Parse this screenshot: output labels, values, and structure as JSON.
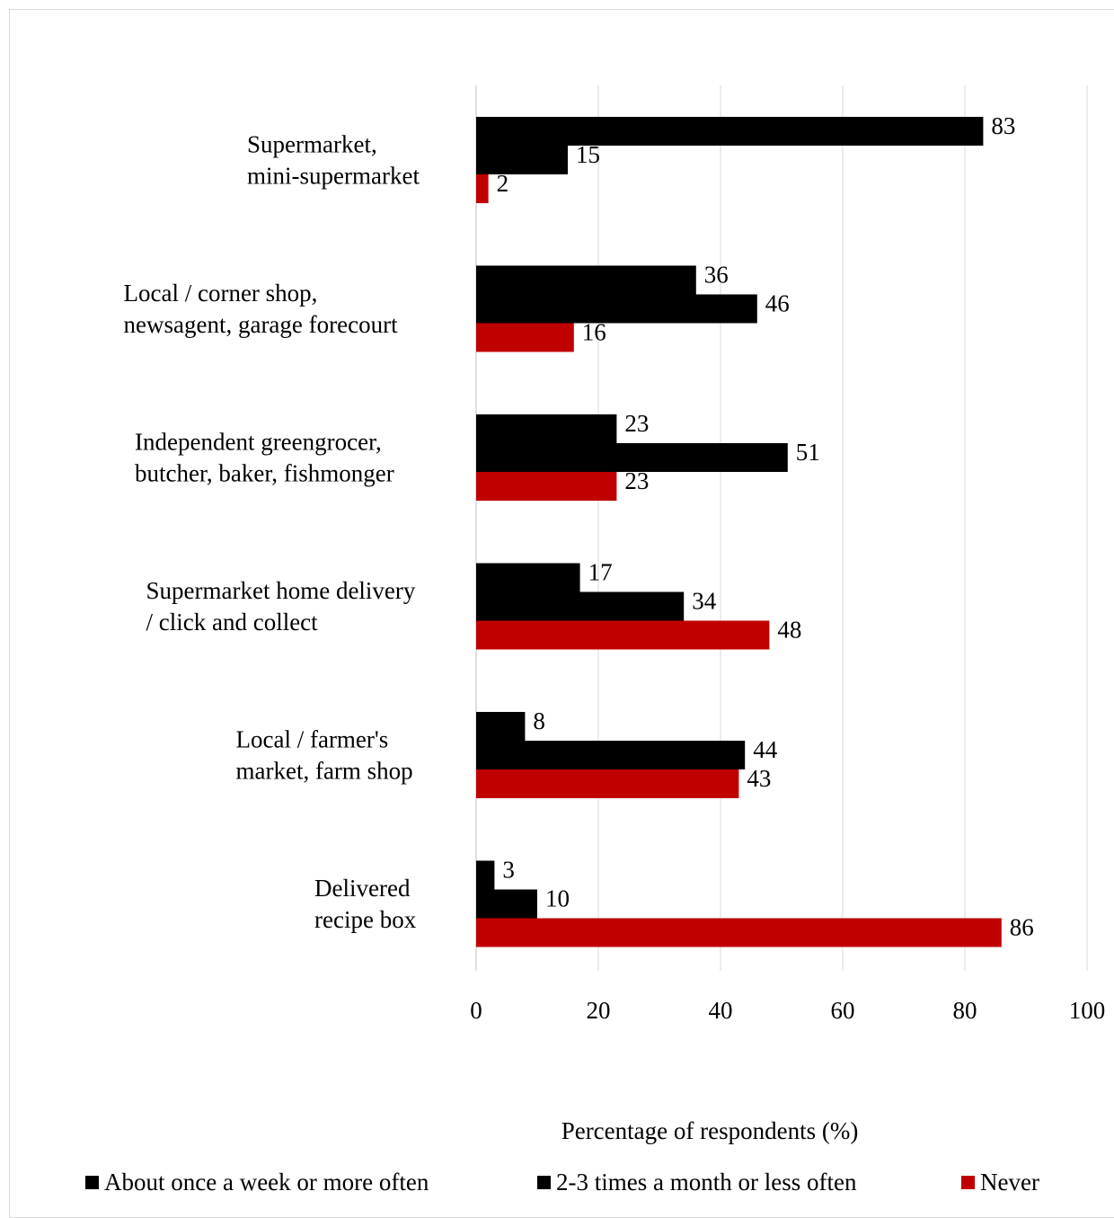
{
  "chart_data": {
    "type": "bar",
    "orientation": "horizontal",
    "categories": [
      [
        "Supermarket,",
        "mini-supermarket"
      ],
      [
        "Local / corner shop,",
        "newsagent, garage forecourt"
      ],
      [
        "Independent greengrocer,",
        "butcher, baker, fishmonger"
      ],
      [
        "Supermarket home delivery",
        "/ click and collect"
      ],
      [
        "Local / farmer's",
        "market, farm shop"
      ],
      [
        "Delivered",
        "recipe box"
      ]
    ],
    "series": [
      {
        "name": "About once a week or more often",
        "color": "#000000",
        "values": [
          83,
          36,
          23,
          17,
          8,
          3
        ]
      },
      {
        "name": "2-3 times a month or less often",
        "color": "#000000",
        "values": [
          15,
          46,
          51,
          34,
          44,
          10
        ]
      },
      {
        "name": "Never",
        "color": "#c00000",
        "values": [
          2,
          16,
          23,
          48,
          43,
          86
        ]
      }
    ],
    "xlabel": "Percentage of respondents (%)",
    "xlim": [
      0,
      100
    ],
    "xticks": [
      "0",
      "20",
      "40",
      "60",
      "80",
      "100"
    ],
    "grid": true,
    "legend_position": "bottom"
  }
}
